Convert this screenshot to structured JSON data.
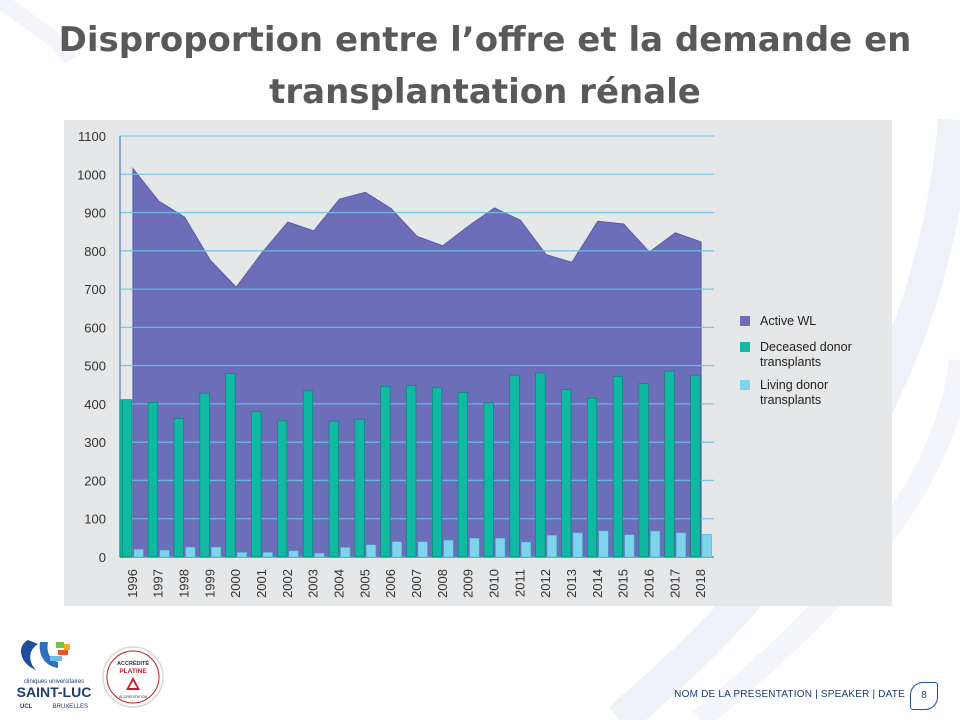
{
  "slide": {
    "title": "Disproportion entre l’offre et la demande en transplantation rénale",
    "footer": "NOM DE LA PRESENTATION | SPEAKER | DATE",
    "page_number": "8"
  },
  "logos": {
    "saintluc": {
      "line1": "cliniques universitaires",
      "line2": "SAINT-LUC",
      "line3a": "UCL",
      "line3b": "BRUXELLES"
    },
    "accreditation": {
      "line1": "ACCRÉDITÉ",
      "line2": "PLATINE",
      "line3": "ACCREDITATION"
    }
  },
  "colors": {
    "active_wl": "#6c6eba",
    "deceased": "#0fb9a2",
    "living": "#7dd5ec",
    "grid": "#6ec3e2",
    "panel": "#e6e7e8",
    "brand": "#1f3a6e"
  },
  "chart_data": {
    "type": "bar",
    "categories": [
      "1996",
      "1997",
      "1998",
      "1999",
      "2000",
      "2001",
      "2002",
      "2003",
      "2004",
      "2005",
      "2006",
      "2007",
      "2008",
      "2009",
      "2010",
      "2011",
      "2012",
      "2013",
      "2014",
      "2015",
      "2016",
      "2017",
      "2018"
    ],
    "ylim": [
      0,
      1100
    ],
    "yticks": [
      0,
      100,
      200,
      300,
      400,
      500,
      600,
      700,
      800,
      900,
      1000,
      1100
    ],
    "grid": true,
    "legend_position": "right",
    "series": [
      {
        "name": "Active WL",
        "kind": "area",
        "values": [
          1015,
          930,
          888,
          775,
          705,
          795,
          875,
          852,
          935,
          953,
          910,
          838,
          813,
          865,
          912,
          880,
          790,
          770,
          877,
          870,
          797,
          847,
          823
        ]
      },
      {
        "name": "Deceased donor transplants",
        "kind": "bar",
        "values": [
          411,
          404,
          362,
          428,
          479,
          380,
          356,
          434,
          355,
          360,
          446,
          448,
          443,
          430,
          403,
          475,
          481,
          437,
          415,
          472,
          453,
          486,
          475
        ]
      },
      {
        "name": "Living donor transplants",
        "kind": "bar",
        "values": [
          20,
          18,
          26,
          26,
          12,
          12,
          16,
          10,
          25,
          32,
          40,
          40,
          44,
          49,
          49,
          39,
          57,
          63,
          68,
          58,
          68,
          63,
          59
        ]
      }
    ],
    "extra": {
      "deceased_leading_value": 411
    }
  }
}
